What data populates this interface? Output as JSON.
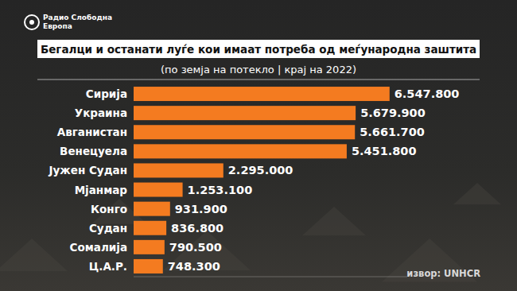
{
  "chart_data": {
    "type": "bar",
    "orientation": "horizontal",
    "title": "Бегалци и останати луѓе кои имаат потреба од меѓународна заштита",
    "subtitle": "(по земја на потекло | крај на 2022)",
    "annotations": [
      "Радио Слободна Европа",
      "извор: UNHCR"
    ],
    "categories": [
      "Сирија",
      "Украина",
      "Авганистан",
      "Венецуела",
      "Јужен Судан",
      "Мјанмар",
      "Конго",
      "Судан",
      "Сомалија",
      "Ц.А.Р."
    ],
    "values": [
      6547800,
      5679900,
      5661700,
      5451800,
      2295000,
      1253100,
      931900,
      836800,
      790500,
      748300
    ],
    "value_labels": [
      "6.547.800",
      "5.679.900",
      "5.661.700",
      "5.451.800",
      "2.295.000",
      "1.253.100",
      "931.900",
      "836.800",
      "790.500",
      "748.300"
    ],
    "color": "#f47b20",
    "xlim": [
      0,
      7000000
    ],
    "grid": false,
    "data_labels": true,
    "tick_labels": "y"
  }
}
